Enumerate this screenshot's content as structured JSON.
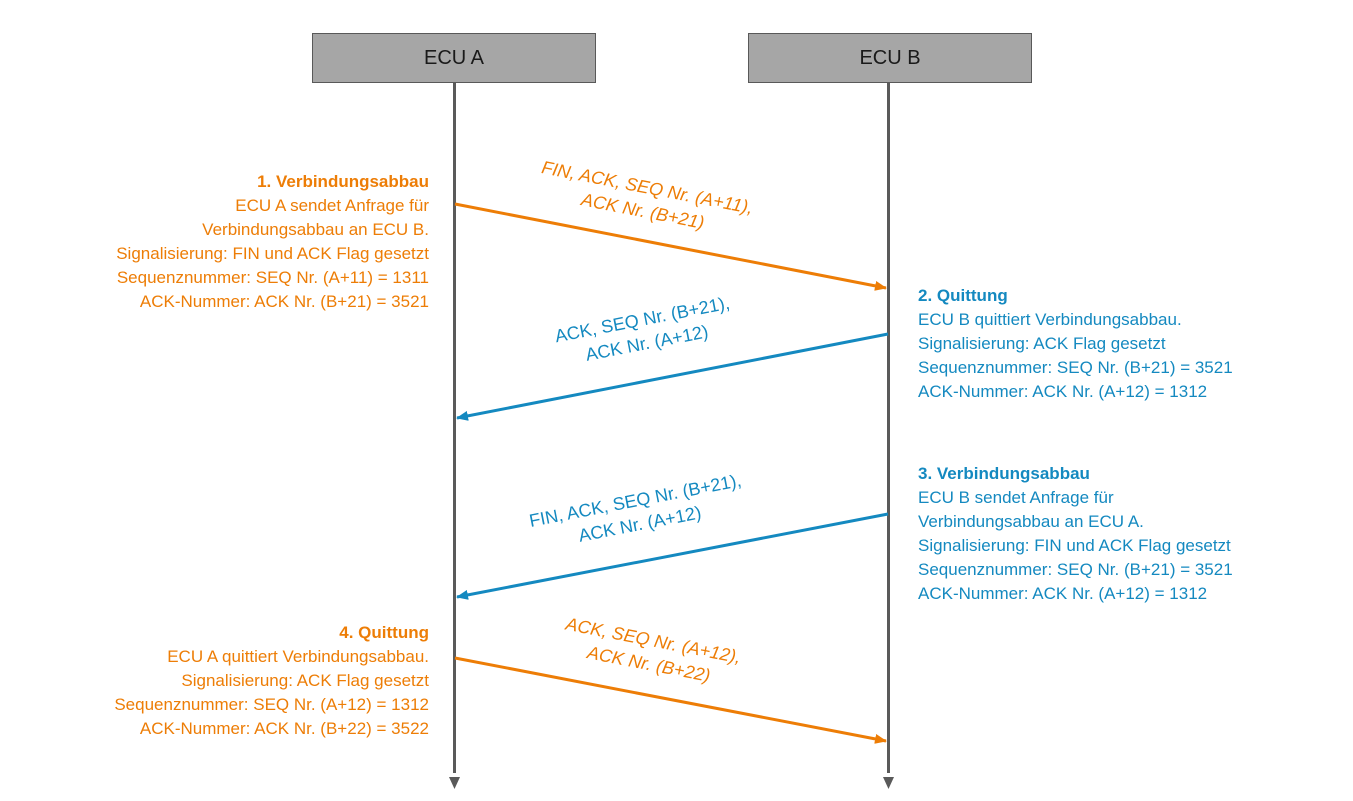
{
  "participants": {
    "a": "ECU A",
    "b": "ECU B"
  },
  "colors": {
    "orange": "#ed7d06",
    "blue": "#1489c0",
    "lifeline": "#5a5a5a",
    "box_fill": "#a6a6a6"
  },
  "steps": [
    {
      "title": "1. Verbindungsabbau",
      "lines": [
        "ECU A sendet Anfrage für",
        "Verbindungsabbau an ECU B.",
        "Signalisierung: FIN und ACK Flag gesetzt",
        "Sequenznummer: SEQ Nr. (A+11) = 1311",
        "ACK-Nummer: ACK Nr. (B+21) = 3521"
      ],
      "message_line1": "FIN, ACK, SEQ Nr. (A+11),",
      "message_line2": "ACK Nr. (B+21)"
    },
    {
      "title": "2. Quittung",
      "lines": [
        "ECU B quittiert Verbindungsabbau.",
        "Signalisierung: ACK Flag gesetzt",
        "Sequenznummer: SEQ Nr. (B+21) = 3521",
        "ACK-Nummer: ACK Nr. (A+12) = 1312"
      ],
      "message_line1": "ACK, SEQ Nr. (B+21),",
      "message_line2": "ACK Nr. (A+12)"
    },
    {
      "title": "3. Verbindungsabbau",
      "lines": [
        "ECU B sendet Anfrage für",
        "Verbindungsabbau an ECU A.",
        "Signalisierung: FIN und ACK Flag gesetzt",
        "Sequenznummer: SEQ Nr. (B+21) = 3521",
        "ACK-Nummer: ACK Nr. (A+12) = 1312"
      ],
      "message_line1": "FIN, ACK, SEQ Nr. (B+21),",
      "message_line2": "ACK Nr. (A+12)"
    },
    {
      "title": "4. Quittung",
      "lines": [
        "ECU A quittiert Verbindungsabbau.",
        "Signalisierung: ACK Flag gesetzt",
        "Sequenznummer: SEQ Nr. (A+12) = 1312",
        "ACK-Nummer: ACK Nr. (B+22) = 3522"
      ],
      "message_line1": "ACK, SEQ Nr. (A+12),",
      "message_line2": "ACK Nr. (B+22)"
    }
  ]
}
